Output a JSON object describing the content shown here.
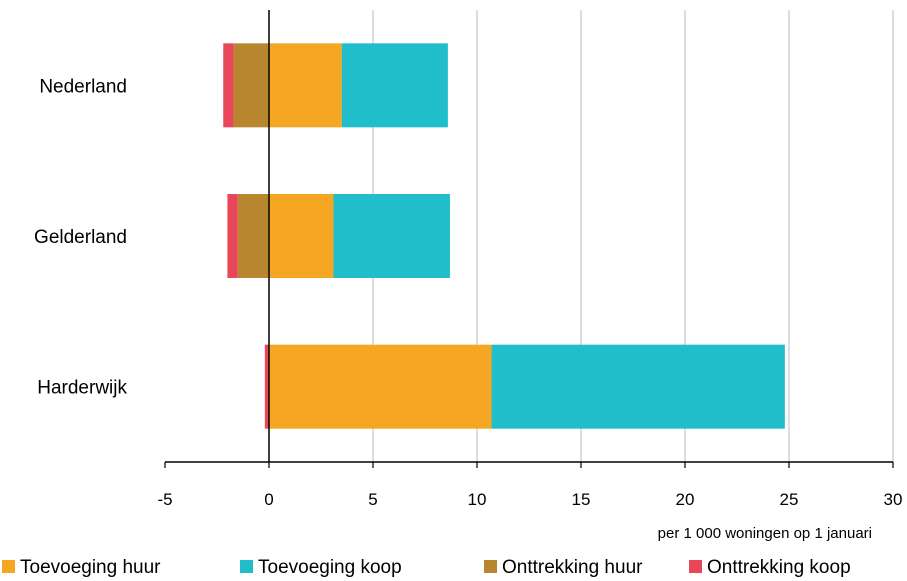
{
  "chart_data": {
    "type": "bar",
    "orientation": "horizontal",
    "stacked": true,
    "categories": [
      "Nederland",
      "Gelderland",
      "Harderwijk"
    ],
    "series": [
      {
        "name": "Toevoeging huur",
        "color": "#F5A623",
        "values": [
          3.5,
          3.1,
          10.7
        ]
      },
      {
        "name": "Toevoeging koop",
        "color": "#1FBECA",
        "values": [
          5.1,
          5.6,
          14.1
        ]
      },
      {
        "name": "Onttrekking huur",
        "color": "#B8862E",
        "values": [
          -1.7,
          -1.5,
          0
        ]
      },
      {
        "name": "Onttrekking koop",
        "color": "#E8475A",
        "values": [
          -0.5,
          -0.5,
          -0.2
        ]
      }
    ],
    "xlabel": "per 1 000 woningen op 1 januari",
    "xlim": [
      -5,
      30
    ],
    "xticks": [
      -5,
      0,
      5,
      10,
      15,
      20,
      25,
      30
    ],
    "tick_labels": [
      "-5",
      "0",
      "5",
      "10",
      "15",
      "20",
      "25",
      "30"
    ],
    "grid": true,
    "legend_position": "bottom"
  }
}
